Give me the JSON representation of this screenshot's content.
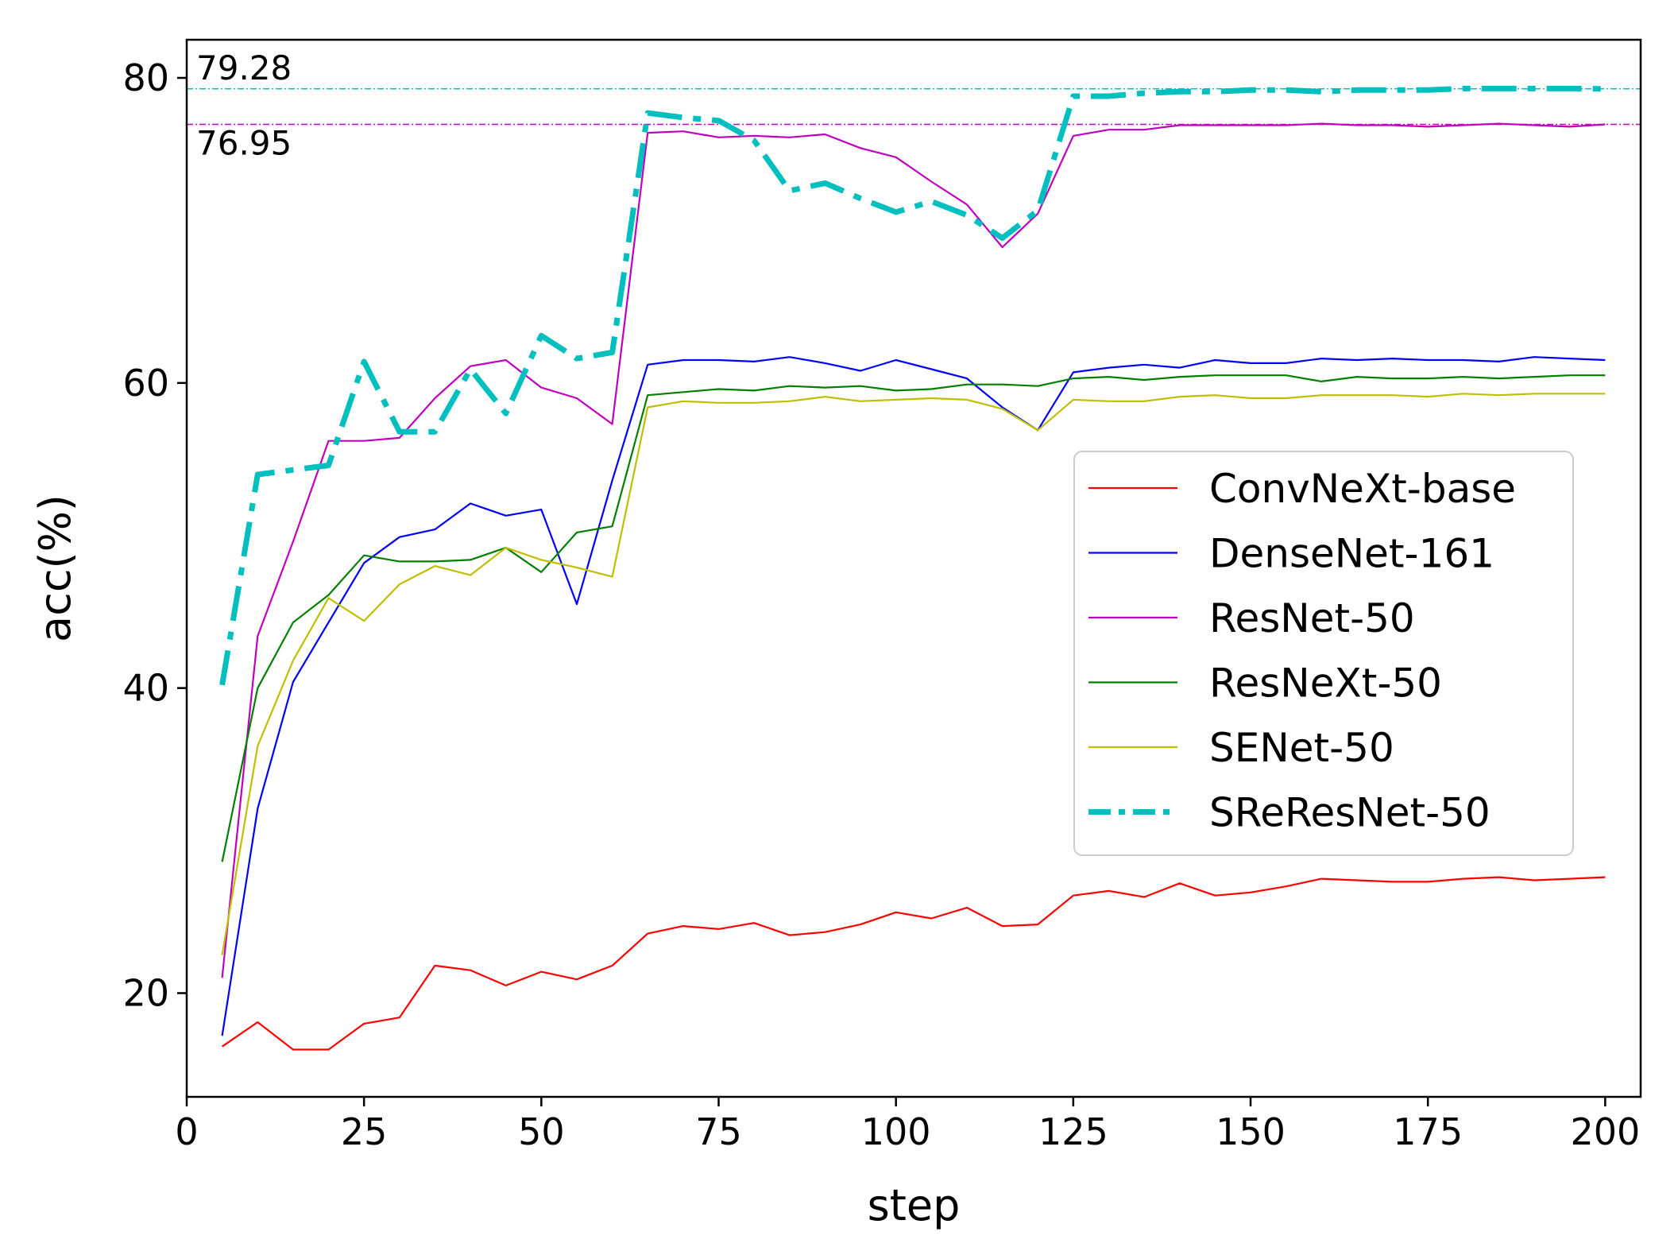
{
  "chart_data": {
    "type": "line",
    "title": "",
    "xlabel": "step",
    "ylabel": "acc(%)",
    "xlim": [
      0,
      205
    ],
    "ylim": [
      13.2,
      82.5
    ],
    "xticks": [
      0,
      25,
      50,
      75,
      100,
      125,
      150,
      175,
      200
    ],
    "xtick_labels": [
      "0",
      "25",
      "50",
      "75",
      "100",
      "125",
      "150",
      "175",
      "200"
    ],
    "yticks": [
      20,
      40,
      60,
      80
    ],
    "ytick_labels": [
      "20",
      "40",
      "60",
      "80"
    ],
    "grid": false,
    "legend_position": "center-right",
    "x": [
      5,
      10,
      15,
      20,
      25,
      30,
      35,
      40,
      45,
      50,
      55,
      60,
      65,
      70,
      75,
      80,
      85,
      90,
      95,
      100,
      105,
      110,
      115,
      120,
      125,
      130,
      135,
      140,
      145,
      150,
      155,
      160,
      165,
      170,
      175,
      180,
      185,
      190,
      195,
      200
    ],
    "series": [
      {
        "name": "ConvNeXt-base",
        "color": "#ff0000",
        "style": "solid",
        "width": 2.2,
        "values": [
          16.5,
          18.1,
          16.3,
          16.3,
          18.0,
          18.4,
          21.8,
          21.5,
          20.5,
          21.4,
          20.9,
          21.8,
          23.9,
          24.4,
          24.2,
          24.6,
          23.8,
          24.0,
          24.5,
          25.3,
          24.9,
          25.6,
          24.4,
          24.5,
          26.4,
          26.7,
          26.3,
          27.2,
          26.4,
          26.6,
          27.0,
          27.5,
          27.4,
          27.3,
          27.3,
          27.5,
          27.6,
          27.4,
          27.5,
          27.6
        ]
      },
      {
        "name": "DenseNet-161",
        "color": "#0000ff",
        "style": "solid",
        "width": 2.2,
        "values": [
          17.2,
          32.1,
          40.4,
          44.3,
          48.2,
          49.9,
          50.4,
          52.1,
          51.3,
          51.7,
          45.5,
          53.6,
          61.2,
          61.5,
          61.5,
          61.4,
          61.7,
          61.3,
          60.8,
          61.5,
          60.9,
          60.3,
          58.4,
          56.9,
          60.7,
          61.0,
          61.2,
          61.0,
          61.5,
          61.3,
          61.3,
          61.6,
          61.5,
          61.6,
          61.5,
          61.5,
          61.4,
          61.7,
          61.6,
          61.5
        ]
      },
      {
        "name": "ResNet-50",
        "color": "#c000c0",
        "style": "solid",
        "width": 2.2,
        "values": [
          21.0,
          43.4,
          49.6,
          56.2,
          56.2,
          56.4,
          59.0,
          61.1,
          61.5,
          59.7,
          59.0,
          57.3,
          76.4,
          76.5,
          76.1,
          76.2,
          76.1,
          76.3,
          75.4,
          74.8,
          73.2,
          71.7,
          68.9,
          71.1,
          76.2,
          76.6,
          76.6,
          76.9,
          76.9,
          76.9,
          76.9,
          77.0,
          76.9,
          76.9,
          76.8,
          76.9,
          77.0,
          76.9,
          76.8,
          76.95
        ]
      },
      {
        "name": "ResNeXt-50",
        "color": "#008000",
        "style": "solid",
        "width": 2.2,
        "values": [
          28.6,
          40.0,
          44.3,
          46.1,
          48.7,
          48.3,
          48.3,
          48.4,
          49.2,
          47.6,
          50.2,
          50.6,
          59.2,
          59.4,
          59.6,
          59.5,
          59.8,
          59.7,
          59.8,
          59.5,
          59.6,
          59.9,
          59.9,
          59.8,
          60.3,
          60.4,
          60.2,
          60.4,
          60.5,
          60.5,
          60.5,
          60.1,
          60.4,
          60.3,
          60.3,
          60.4,
          60.3,
          60.4,
          60.5,
          60.5
        ]
      },
      {
        "name": "SENet-50",
        "color": "#bfbf00",
        "style": "solid",
        "width": 2.2,
        "values": [
          22.5,
          36.2,
          41.8,
          45.9,
          44.4,
          46.8,
          48.0,
          47.4,
          49.2,
          48.4,
          47.9,
          47.3,
          58.4,
          58.8,
          58.7,
          58.7,
          58.8,
          59.1,
          58.8,
          58.9,
          59.0,
          58.9,
          58.3,
          56.9,
          58.9,
          58.8,
          58.8,
          59.1,
          59.2,
          59.0,
          59.0,
          59.2,
          59.2,
          59.2,
          59.1,
          59.3,
          59.2,
          59.3,
          59.3,
          59.3
        ]
      },
      {
        "name": "SReResNet-50",
        "color": "#00bfbf",
        "style": "dashdot",
        "width": 7,
        "values": [
          40.2,
          54.0,
          54.3,
          54.6,
          61.4,
          56.8,
          56.8,
          60.9,
          58.0,
          63.1,
          61.6,
          62.0,
          77.7,
          77.4,
          77.2,
          75.9,
          72.6,
          73.1,
          72.1,
          71.2,
          71.9,
          71.0,
          69.5,
          71.3,
          78.8,
          78.8,
          79.0,
          79.1,
          79.1,
          79.2,
          79.2,
          79.1,
          79.2,
          79.2,
          79.2,
          79.3,
          79.3,
          79.3,
          79.3,
          79.28
        ]
      }
    ],
    "reference_lines": [
      {
        "y": 79.28,
        "label": "79.28",
        "color": "#00bfbf"
      },
      {
        "y": 76.95,
        "label": "76.95",
        "color": "#c000c0"
      }
    ]
  }
}
